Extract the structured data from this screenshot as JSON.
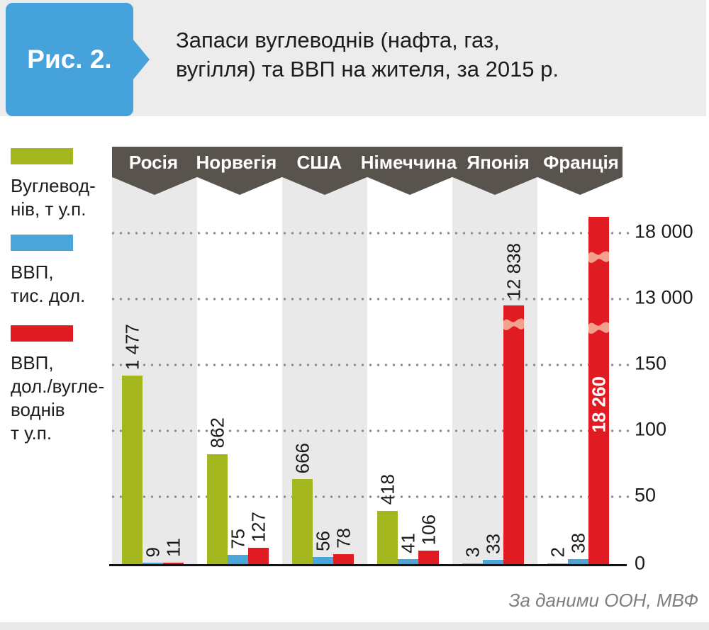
{
  "figure_label": "Рис. 2.",
  "title_lines": [
    "Запаси вуглеводнів (нафта, газ,",
    "вугілля) та ВВП на жителя, за 2015 р."
  ],
  "source": "За даними ООН, МВФ",
  "colors": {
    "green": "#a5b71f",
    "blue": "#4aa5da",
    "red": "#e11b22",
    "red_break": "#f1a18e",
    "banner": "#59534e",
    "stripe": "#e9e9e9",
    "header_bg": "#ececec",
    "badge_blue": "#45a2da",
    "grid_dot": "#8c8c8c",
    "text": "#1d1d1b",
    "source_text": "#7f7f7f"
  },
  "legend": {
    "items": [
      {
        "color_key": "green",
        "lines": [
          "Вуглевод-",
          "нів, т у.п."
        ]
      },
      {
        "color_key": "blue",
        "lines": [
          "ВВП,",
          "тис. дол."
        ]
      },
      {
        "color_key": "red",
        "lines": [
          "ВВП,",
          "дол./вугле-",
          "воднів",
          "т у.п."
        ]
      }
    ]
  },
  "chart_data": {
    "type": "bar",
    "broken_axis": true,
    "grid": "dotted-horizontal",
    "legend_position": "left",
    "categories": [
      "Росія",
      "Норвегія",
      "США",
      "Німеччина",
      "Японія",
      "Франція"
    ],
    "series": [
      {
        "name": "Вуглеводнів, т у.п.",
        "color_key": "green",
        "values": [
          1477,
          862,
          666,
          418,
          3,
          2
        ],
        "labels": [
          "1 477",
          "862",
          "666",
          "418",
          "3",
          "2"
        ]
      },
      {
        "name": "ВВП, тис. дол.",
        "color_key": "blue",
        "values": [
          9,
          75,
          56,
          41,
          33,
          38
        ],
        "labels": [
          "9",
          "75",
          "56",
          "41",
          "33",
          "38"
        ]
      },
      {
        "name": "ВВП, дол./вуглеводнів т у.п.",
        "color_key": "red",
        "values": [
          11,
          127,
          78,
          106,
          12838,
          18260
        ],
        "labels": [
          "11",
          "127",
          "78",
          "106",
          "12 838",
          "18 260"
        ]
      }
    ],
    "y_axis_ticks": [
      "18 000",
      "13 000",
      "150",
      "100",
      "50",
      "0"
    ]
  }
}
